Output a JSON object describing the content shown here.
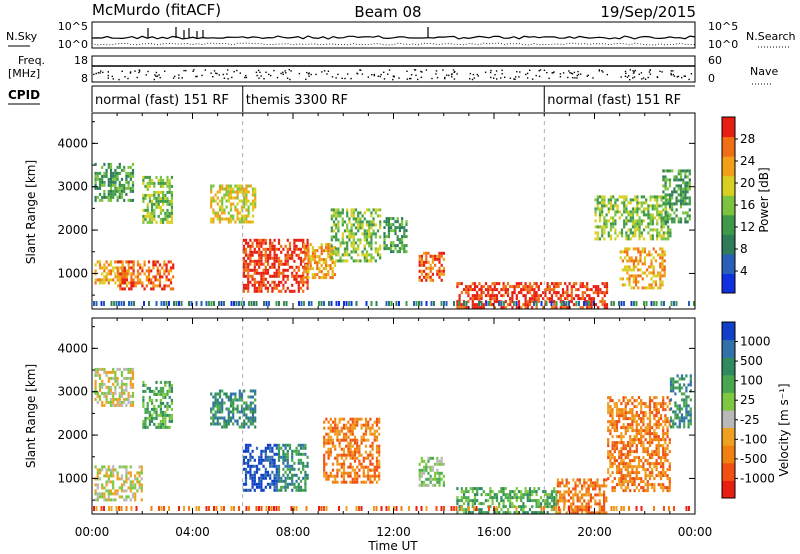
{
  "header": {
    "station": "McMurdo (fitACF)",
    "beam": "Beam 08",
    "date": "19/Sep/2015"
  },
  "strips": {
    "nsky_label": "N.Sky",
    "nsky_ticks": [
      "10^5",
      "10^0"
    ],
    "nsearch_label": "N.Search",
    "nsearch_ticks": [
      "10^5",
      "10^0"
    ],
    "freq_label_1": "Freq.",
    "freq_label_2": "[MHz]",
    "freq_ticks": [
      "18",
      "8"
    ],
    "nave_label": "Nave",
    "nave_ticks": [
      "60",
      "0"
    ],
    "cpid_label": "CPID",
    "cpid_segments": [
      {
        "label": "normal (fast) 151 RF",
        "start_h": 0,
        "end_h": 6
      },
      {
        "label": "themis 3300 RF",
        "start_h": 6,
        "end_h": 18
      },
      {
        "label": "normal (fast) 151 RF",
        "start_h": 18,
        "end_h": 24
      }
    ]
  },
  "chart_data": [
    {
      "type": "heatmap",
      "title": "Power",
      "ylabel": "Slant Range [km]",
      "xlabel": "Time UT",
      "x_ticks": [
        "00:00",
        "04:00",
        "08:00",
        "12:00",
        "16:00",
        "20:00",
        "00:00"
      ],
      "y_ticks": [
        "1000",
        "2000",
        "3000",
        "4000"
      ],
      "xlim_hours": [
        0,
        24
      ],
      "ylim_km": [
        180,
        4700
      ],
      "colorbar": {
        "label": "Power [dB]",
        "ticks": [
          "4",
          "8",
          "12",
          "16",
          "20",
          "24",
          "28"
        ],
        "colors": [
          "#1030e0",
          "#2860b8",
          "#2e7c5a",
          "#3e9a48",
          "#7cc440",
          "#d8d020",
          "#f2a018",
          "#f06e14",
          "#e81e10"
        ]
      },
      "gates_km": [
        180,
        4700
      ],
      "echo_regions": [
        {
          "t0": 0.1,
          "t1": 1.6,
          "r0": 2700,
          "r1": 3550,
          "level": 3
        },
        {
          "t0": 0.1,
          "t1": 1.5,
          "r0": 800,
          "r1": 1300,
          "level": 6
        },
        {
          "t0": 1.0,
          "t1": 3.2,
          "r0": 650,
          "r1": 1300,
          "level": 7
        },
        {
          "t0": 2.0,
          "t1": 3.2,
          "r0": 2200,
          "r1": 3250,
          "level": 4
        },
        {
          "t0": 4.7,
          "t1": 6.5,
          "r0": 2200,
          "r1": 3050,
          "level": 5
        },
        {
          "t0": 6.0,
          "t1": 8.6,
          "r0": 600,
          "r1": 1800,
          "level": 8
        },
        {
          "t0": 8.4,
          "t1": 9.7,
          "r0": 900,
          "r1": 1700,
          "level": 6
        },
        {
          "t0": 9.5,
          "t1": 11.5,
          "r0": 1300,
          "r1": 2500,
          "level": 4
        },
        {
          "t0": 11.6,
          "t1": 12.5,
          "r0": 1500,
          "r1": 2300,
          "level": 3
        },
        {
          "t0": 13.0,
          "t1": 14.0,
          "r0": 850,
          "r1": 1500,
          "level": 7
        },
        {
          "t0": 14.5,
          "t1": 20.5,
          "r0": 200,
          "r1": 800,
          "level": 8
        },
        {
          "t0": 20.0,
          "t1": 23.0,
          "r0": 1800,
          "r1": 2800,
          "level": 4
        },
        {
          "t0": 21.0,
          "t1": 22.8,
          "r0": 700,
          "r1": 1600,
          "level": 6
        },
        {
          "t0": 22.7,
          "t1": 23.8,
          "r0": 2200,
          "r1": 3400,
          "level": 3
        }
      ]
    },
    {
      "type": "heatmap",
      "title": "Velocity",
      "ylabel": "Slant Range [km]",
      "xlabel": "Time UT",
      "x_ticks": [
        "00:00",
        "04:00",
        "08:00",
        "12:00",
        "16:00",
        "20:00",
        "00:00"
      ],
      "y_ticks": [
        "1000",
        "2000",
        "3000",
        "4000"
      ],
      "xlim_hours": [
        0,
        24
      ],
      "ylim_km": [
        180,
        4700
      ],
      "colorbar": {
        "label": "Velocity [m s⁻¹]",
        "ticks": [
          "1000",
          "500",
          "100",
          "25",
          "-25",
          "-100",
          "-500",
          "-1000"
        ],
        "colors": [
          "#1040c8",
          "#3072a8",
          "#2f8a5e",
          "#48a850",
          "#7cc840",
          "#b8b8b8",
          "#f0a020",
          "#f08010",
          "#f05010",
          "#e81e10"
        ]
      },
      "echo_regions": [
        {
          "t0": 0.1,
          "t1": 1.6,
          "r0": 2700,
          "r1": 3550,
          "level": 5
        },
        {
          "t0": 0.1,
          "t1": 2.0,
          "r0": 500,
          "r1": 1300,
          "level": 5
        },
        {
          "t0": 2.0,
          "t1": 3.2,
          "r0": 2200,
          "r1": 3250,
          "level": 3
        },
        {
          "t0": 4.7,
          "t1": 6.5,
          "r0": 2200,
          "r1": 3050,
          "level": 2
        },
        {
          "t0": 6.0,
          "t1": 7.4,
          "r0": 700,
          "r1": 1800,
          "level": 0
        },
        {
          "t0": 7.4,
          "t1": 8.6,
          "r0": 700,
          "r1": 1800,
          "level": 2
        },
        {
          "t0": 9.2,
          "t1": 11.4,
          "r0": 900,
          "r1": 2400,
          "level": 7
        },
        {
          "t0": 13.0,
          "t1": 14.0,
          "r0": 850,
          "r1": 1500,
          "level": 4
        },
        {
          "t0": 14.5,
          "t1": 18.5,
          "r0": 200,
          "r1": 800,
          "level": 3
        },
        {
          "t0": 18.5,
          "t1": 20.5,
          "r0": 200,
          "r1": 1000,
          "level": 7
        },
        {
          "t0": 20.5,
          "t1": 23.0,
          "r0": 700,
          "r1": 2900,
          "level": 7
        },
        {
          "t0": 23.0,
          "t1": 23.8,
          "r0": 2200,
          "r1": 3400,
          "level": 2
        }
      ]
    }
  ]
}
